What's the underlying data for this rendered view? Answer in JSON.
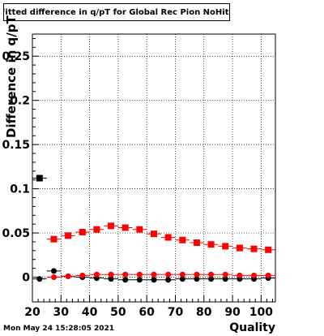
{
  "chart_data": {
    "type": "scatter",
    "title": "Fitted difference in q/pT for Global Rec Pion NoHits",
    "xlabel": "Quality",
    "ylabel": "Difference in q/pT",
    "xlim": [
      20,
      105
    ],
    "ylim": [
      -0.028,
      0.275
    ],
    "x_ticks": [
      20,
      30,
      40,
      50,
      60,
      70,
      80,
      90,
      100
    ],
    "y_ticks": [
      0,
      0.05,
      0.1,
      0.15,
      0.2,
      0.25
    ],
    "x_tick_labels": [
      "20",
      "30",
      "40",
      "50",
      "60",
      "70",
      "80",
      "90",
      "100"
    ],
    "y_tick_labels": [
      "0",
      "0.05",
      "0.1",
      "0.15",
      "0.2",
      "0.25"
    ],
    "grid": true,
    "series": [
      {
        "color": "#000000",
        "marker": "square",
        "x": [
          22.5
        ],
        "y": [
          0.112
        ],
        "xerr": 2.5
      },
      {
        "color": "#ff0000",
        "marker": "square",
        "x": [
          27.5,
          32.5,
          37.5,
          42.5,
          47.5,
          52.5,
          57.5,
          62.5,
          67.5,
          72.5,
          77.5,
          82.5,
          87.5,
          92.5,
          97.5,
          102.5
        ],
        "y": [
          0.043,
          0.047,
          0.051,
          0.054,
          0.058,
          0.056,
          0.054,
          0.049,
          0.045,
          0.042,
          0.039,
          0.037,
          0.035,
          0.033,
          0.032,
          0.031
        ],
        "xerr": 2.5
      },
      {
        "color": "#000000",
        "marker": "circle",
        "x": [
          22.5,
          27.5,
          32.5,
          37.5,
          42.5,
          47.5,
          52.5,
          57.5,
          62.5,
          67.5,
          72.5,
          77.5,
          82.5,
          87.5,
          92.5,
          97.5,
          102.5
        ],
        "y": [
          -0.002,
          0.007,
          0.001,
          0.0,
          -0.001,
          -0.002,
          -0.003,
          -0.003,
          -0.003,
          -0.003,
          -0.002,
          -0.002,
          -0.002,
          -0.002,
          -0.002,
          -0.002,
          -0.001
        ],
        "xerr": 2.5
      },
      {
        "color": "#ff0000",
        "marker": "circle",
        "x": [
          27.5,
          32.5,
          37.5,
          42.5,
          47.5,
          52.5,
          57.5,
          62.5,
          67.5,
          72.5,
          77.5,
          82.5,
          87.5,
          92.5,
          97.5,
          102.5
        ],
        "y": [
          0.0,
          0.001,
          0.002,
          0.003,
          0.003,
          0.003,
          0.003,
          0.003,
          0.003,
          0.003,
          0.003,
          0.003,
          0.003,
          0.002,
          0.002,
          0.002
        ],
        "xerr": 2.5
      }
    ]
  },
  "footer": {
    "datestamp": "Mon May 24 15:28:05 2021"
  }
}
